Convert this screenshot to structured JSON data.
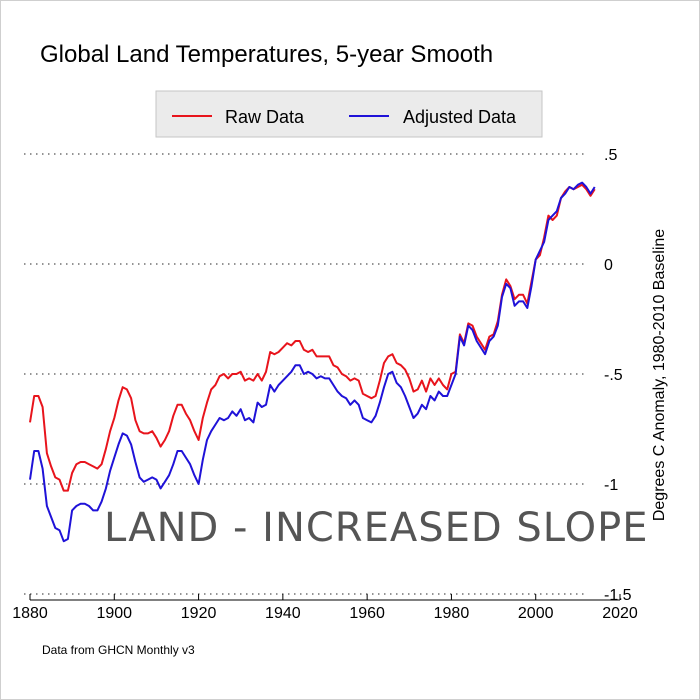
{
  "chart_data": {
    "type": "line",
    "title": "Global Land Temperatures, 5-year Smooth",
    "ylabel": "Degrees C Anomaly, 1980-2010 Baseline",
    "xlabel": "",
    "xlim": [
      1880,
      2020
    ],
    "ylim": [
      -1.5,
      0.5
    ],
    "x_ticks": [
      "1880",
      "1900",
      "1920",
      "1940",
      "1960",
      "1980",
      "2000",
      "2020"
    ],
    "y_ticks": [
      {
        "value": 0.5,
        "label": ".5"
      },
      {
        "value": 0,
        "label": "0"
      },
      {
        "value": -0.5,
        "label": "-.5"
      },
      {
        "value": -1,
        "label": "-1"
      },
      {
        "value": -1.5,
        "label": "-1.5"
      }
    ],
    "grid": "horizontal-dotted",
    "legend_position": "top-center",
    "annotation": "Land - increased slope",
    "source": "Data from GHCN Monthly v3",
    "series": [
      {
        "name": "Raw Data",
        "color": "#e8141c",
        "x": [
          1880,
          1881,
          1882,
          1883,
          1884,
          1885,
          1886,
          1887,
          1888,
          1889,
          1890,
          1891,
          1892,
          1893,
          1894,
          1895,
          1896,
          1897,
          1898,
          1899,
          1900,
          1901,
          1902,
          1903,
          1904,
          1905,
          1906,
          1907,
          1908,
          1909,
          1910,
          1911,
          1912,
          1913,
          1914,
          1915,
          1916,
          1917,
          1918,
          1919,
          1920,
          1921,
          1922,
          1923,
          1924,
          1925,
          1926,
          1927,
          1928,
          1929,
          1930,
          1931,
          1932,
          1933,
          1934,
          1935,
          1936,
          1937,
          1938,
          1939,
          1940,
          1941,
          1942,
          1943,
          1944,
          1945,
          1946,
          1947,
          1948,
          1949,
          1950,
          1951,
          1952,
          1953,
          1954,
          1955,
          1956,
          1957,
          1958,
          1959,
          1960,
          1961,
          1962,
          1963,
          1964,
          1965,
          1966,
          1967,
          1968,
          1969,
          1970,
          1971,
          1972,
          1973,
          1974,
          1975,
          1976,
          1977,
          1978,
          1979,
          1980,
          1981,
          1982,
          1983,
          1984,
          1985,
          1986,
          1987,
          1988,
          1989,
          1990,
          1991,
          1992,
          1993,
          1994,
          1995,
          1996,
          1997,
          1998,
          1999,
          2000,
          2001,
          2002,
          2003,
          2004,
          2005,
          2006,
          2007,
          2008,
          2009,
          2010,
          2011,
          2012,
          2013,
          2014
        ],
        "values": [
          -0.72,
          -0.6,
          -0.6,
          -0.65,
          -0.86,
          -0.92,
          -0.97,
          -0.98,
          -1.03,
          -1.03,
          -0.95,
          -0.91,
          -0.9,
          -0.9,
          -0.91,
          -0.92,
          -0.93,
          -0.91,
          -0.84,
          -0.76,
          -0.7,
          -0.62,
          -0.56,
          -0.57,
          -0.61,
          -0.71,
          -0.76,
          -0.77,
          -0.77,
          -0.76,
          -0.79,
          -0.83,
          -0.8,
          -0.76,
          -0.69,
          -0.64,
          -0.64,
          -0.68,
          -0.71,
          -0.76,
          -0.8,
          -0.7,
          -0.63,
          -0.57,
          -0.55,
          -0.51,
          -0.5,
          -0.52,
          -0.5,
          -0.5,
          -0.49,
          -0.53,
          -0.52,
          -0.53,
          -0.5,
          -0.53,
          -0.49,
          -0.4,
          -0.41,
          -0.4,
          -0.38,
          -0.36,
          -0.37,
          -0.35,
          -0.35,
          -0.39,
          -0.4,
          -0.39,
          -0.42,
          -0.42,
          -0.42,
          -0.42,
          -0.46,
          -0.47,
          -0.5,
          -0.51,
          -0.53,
          -0.52,
          -0.53,
          -0.59,
          -0.6,
          -0.61,
          -0.6,
          -0.53,
          -0.45,
          -0.42,
          -0.41,
          -0.45,
          -0.46,
          -0.48,
          -0.52,
          -0.58,
          -0.57,
          -0.53,
          -0.58,
          -0.52,
          -0.55,
          -0.52,
          -0.55,
          -0.57,
          -0.5,
          -0.49,
          -0.32,
          -0.36,
          -0.27,
          -0.28,
          -0.33,
          -0.36,
          -0.39,
          -0.33,
          -0.32,
          -0.26,
          -0.14,
          -0.07,
          -0.1,
          -0.16,
          -0.14,
          -0.14,
          -0.18,
          -0.08,
          0.02,
          0.04,
          0.12,
          0.22,
          0.2,
          0.22,
          0.3,
          0.33,
          0.35,
          0.34,
          0.35,
          0.36,
          0.34,
          0.31,
          0.34
        ]
      },
      {
        "name": "Adjusted Data",
        "color": "#1f12d8",
        "x": [
          1880,
          1881,
          1882,
          1883,
          1884,
          1885,
          1886,
          1887,
          1888,
          1889,
          1890,
          1891,
          1892,
          1893,
          1894,
          1895,
          1896,
          1897,
          1898,
          1899,
          1900,
          1901,
          1902,
          1903,
          1904,
          1905,
          1906,
          1907,
          1908,
          1909,
          1910,
          1911,
          1912,
          1913,
          1914,
          1915,
          1916,
          1917,
          1918,
          1919,
          1920,
          1921,
          1922,
          1923,
          1924,
          1925,
          1926,
          1927,
          1928,
          1929,
          1930,
          1931,
          1932,
          1933,
          1934,
          1935,
          1936,
          1937,
          1938,
          1939,
          1940,
          1941,
          1942,
          1943,
          1944,
          1945,
          1946,
          1947,
          1948,
          1949,
          1950,
          1951,
          1952,
          1953,
          1954,
          1955,
          1956,
          1957,
          1958,
          1959,
          1960,
          1961,
          1962,
          1963,
          1964,
          1965,
          1966,
          1967,
          1968,
          1969,
          1970,
          1971,
          1972,
          1973,
          1974,
          1975,
          1976,
          1977,
          1978,
          1979,
          1980,
          1981,
          1982,
          1983,
          1984,
          1985,
          1986,
          1987,
          1988,
          1989,
          1990,
          1991,
          1992,
          1993,
          1994,
          1995,
          1996,
          1997,
          1998,
          1999,
          2000,
          2001,
          2002,
          2003,
          2004,
          2005,
          2006,
          2007,
          2008,
          2009,
          2010,
          2011,
          2012,
          2013,
          2014
        ],
        "values": [
          -0.98,
          -0.85,
          -0.85,
          -0.93,
          -1.1,
          -1.15,
          -1.2,
          -1.21,
          -1.26,
          -1.25,
          -1.12,
          -1.1,
          -1.09,
          -1.09,
          -1.1,
          -1.12,
          -1.12,
          -1.08,
          -1.02,
          -0.94,
          -0.88,
          -0.82,
          -0.77,
          -0.78,
          -0.82,
          -0.9,
          -0.97,
          -0.99,
          -0.98,
          -0.97,
          -0.98,
          -1.02,
          -0.99,
          -0.96,
          -0.91,
          -0.85,
          -0.85,
          -0.88,
          -0.91,
          -0.96,
          -1.0,
          -0.89,
          -0.8,
          -0.76,
          -0.73,
          -0.7,
          -0.71,
          -0.7,
          -0.67,
          -0.69,
          -0.66,
          -0.71,
          -0.7,
          -0.72,
          -0.63,
          -0.65,
          -0.64,
          -0.55,
          -0.58,
          -0.55,
          -0.53,
          -0.51,
          -0.49,
          -0.46,
          -0.46,
          -0.5,
          -0.49,
          -0.5,
          -0.52,
          -0.51,
          -0.52,
          -0.52,
          -0.55,
          -0.58,
          -0.6,
          -0.61,
          -0.64,
          -0.62,
          -0.64,
          -0.7,
          -0.71,
          -0.72,
          -0.69,
          -0.63,
          -0.56,
          -0.5,
          -0.49,
          -0.54,
          -0.56,
          -0.6,
          -0.65,
          -0.7,
          -0.68,
          -0.64,
          -0.66,
          -0.6,
          -0.62,
          -0.58,
          -0.6,
          -0.6,
          -0.55,
          -0.5,
          -0.33,
          -0.37,
          -0.28,
          -0.3,
          -0.35,
          -0.38,
          -0.41,
          -0.35,
          -0.33,
          -0.28,
          -0.15,
          -0.09,
          -0.11,
          -0.19,
          -0.17,
          -0.17,
          -0.2,
          -0.1,
          0.02,
          0.06,
          0.1,
          0.2,
          0.22,
          0.24,
          0.3,
          0.32,
          0.35,
          0.34,
          0.36,
          0.37,
          0.35,
          0.32,
          0.35
        ]
      }
    ]
  }
}
